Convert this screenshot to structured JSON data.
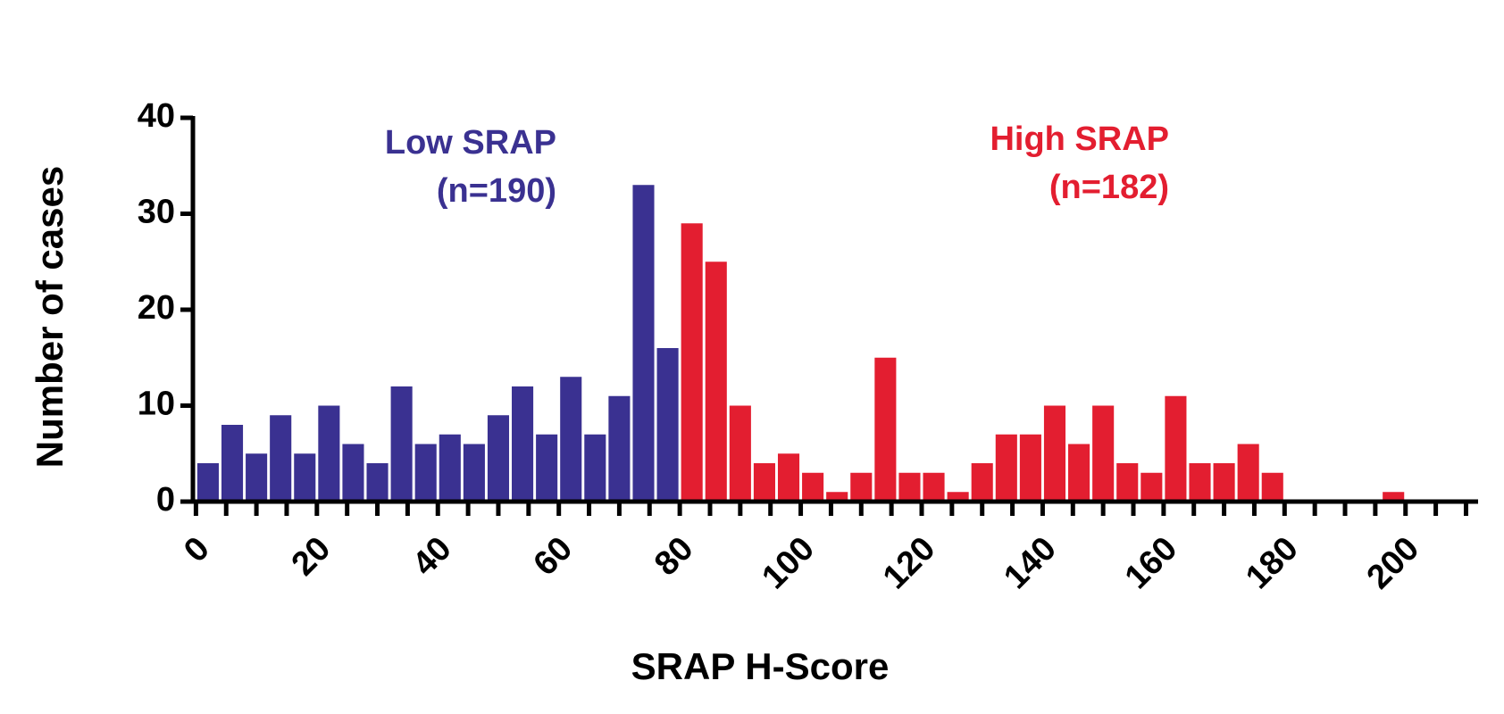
{
  "chart_data": {
    "type": "histogram",
    "x_label": "SRAP H-Score",
    "y_label": "Number of cases",
    "xlim": [
      -0.5,
      212
    ],
    "ylim": [
      0,
      40
    ],
    "xticks": [
      0,
      20,
      40,
      60,
      80,
      100,
      120,
      140,
      160,
      180,
      200
    ],
    "xminorticks": [
      5,
      10,
      15,
      25,
      30,
      35,
      45,
      50,
      55,
      65,
      70,
      75,
      85,
      90,
      95,
      105,
      110,
      115,
      125,
      130,
      135,
      145,
      150,
      155,
      165,
      170,
      175,
      185,
      190,
      195,
      205,
      210
    ],
    "yticks": [
      0,
      10,
      20,
      30,
      40
    ],
    "series": [
      {
        "name": "Low SRAP",
        "annotation": "(n=190)",
        "color": "#3a3191",
        "bins": [
          0,
          4,
          8,
          12,
          16,
          20,
          24,
          28,
          32,
          36,
          40,
          44,
          48,
          52,
          56,
          60,
          64,
          68,
          72,
          76,
          80
        ],
        "values": [
          4,
          8,
          5,
          9,
          5,
          10,
          6,
          4,
          12,
          6,
          7,
          6,
          9,
          12,
          7,
          13,
          7,
          11,
          33,
          16
        ]
      },
      {
        "name": "High SRAP",
        "annotation": "(n=182)",
        "color": "#e31e30",
        "bins": [
          80,
          84,
          88,
          92,
          96,
          100,
          104,
          108,
          112,
          116,
          120,
          124,
          128,
          132,
          136,
          140,
          144,
          148,
          152,
          156,
          160,
          164,
          168,
          172,
          176,
          180,
          184,
          188,
          192,
          196,
          200
        ],
        "values": [
          29,
          25,
          10,
          4,
          5,
          3,
          1,
          3,
          15,
          3,
          3,
          1,
          4,
          7,
          7,
          10,
          6,
          10,
          4,
          3,
          11,
          4,
          4,
          6,
          3,
          0,
          0,
          0,
          0,
          1
        ]
      }
    ]
  }
}
